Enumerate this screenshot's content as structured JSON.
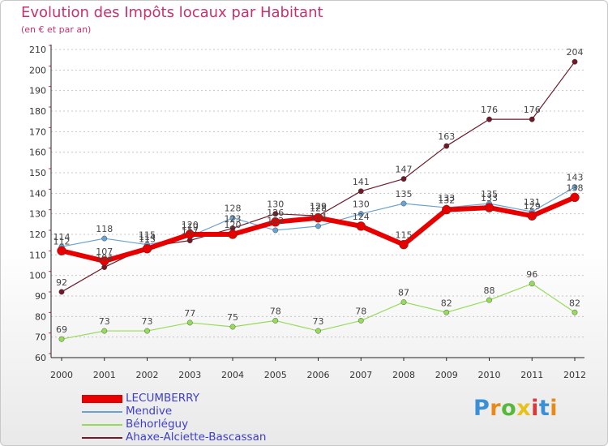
{
  "chart_data": {
    "type": "line",
    "title": "Evolution des Impôts locaux par Habitant",
    "subtitle": "(en € et par an)",
    "xlabel": "",
    "ylabel": "",
    "categories": [
      "2000",
      "2001",
      "2002",
      "2003",
      "2004",
      "2005",
      "2006",
      "2007",
      "2008",
      "2009",
      "2010",
      "2011",
      "2012"
    ],
    "ylim": [
      60,
      210
    ],
    "yticks": [
      60,
      70,
      80,
      90,
      100,
      110,
      120,
      130,
      140,
      150,
      160,
      170,
      180,
      190,
      200,
      210
    ],
    "ytick_labels": [
      "60",
      "70",
      "80",
      "90",
      "100",
      "110",
      "120",
      "130",
      "140",
      "150",
      "160",
      "170",
      "180",
      "190",
      "200",
      "210"
    ],
    "grid": "horizontal dotted",
    "legend_position": "bottom-left",
    "series": [
      {
        "name": "Ahaxe-Alciette-Bascassan",
        "color": "#6e1a28",
        "values": [
          92,
          104,
          114,
          117,
          123,
          130,
          129,
          141,
          147,
          163,
          176,
          176,
          204
        ],
        "labels": [
          "92",
          "104",
          "114",
          "117",
          "123",
          "130",
          "129",
          "141",
          "147",
          "163",
          "176",
          "176",
          "204"
        ]
      },
      {
        "name": "Béhorléguy",
        "color": "#96dc5a",
        "values": [
          69,
          73,
          73,
          77,
          75,
          78,
          73,
          78,
          87,
          82,
          88,
          96,
          82
        ],
        "labels": [
          "69",
          "73",
          "73",
          "77",
          "75",
          "78",
          "73",
          "78",
          "87",
          "82",
          "88",
          "96",
          "82"
        ]
      },
      {
        "name": "Mendive",
        "color": "#6aa2d0",
        "values": [
          114,
          118,
          115,
          119,
          128,
          122,
          124,
          130,
          135,
          133,
          135,
          131,
          143
        ],
        "labels": [
          "114",
          "118",
          "115",
          "119",
          "128",
          "122",
          "124",
          "130",
          "135",
          "133",
          "135",
          "131",
          "143"
        ]
      },
      {
        "name": "LECUMBERRY",
        "color": "#e80000",
        "values": [
          112,
          107,
          113,
          120,
          120,
          126,
          128,
          124,
          115,
          132,
          133,
          129,
          138
        ],
        "labels": [
          "112",
          "107",
          "113",
          "120",
          "120",
          "126",
          "128",
          "124",
          "115",
          "132",
          "133",
          "129",
          "138"
        ]
      }
    ]
  },
  "legend": {
    "items": [
      "LECUMBERRY",
      "Mendive",
      "Béhorléguy",
      "Ahaxe-Alciette-Bascassan"
    ]
  },
  "branding": {
    "logo_text": "Proxiti",
    "letters": [
      "P",
      "r",
      "o",
      "x",
      "i",
      "t",
      "i"
    ],
    "letter_colors": [
      "#3a8fd6",
      "#e88a1a",
      "#58b83a",
      "#e8c21a",
      "#d83a3a",
      "#3a8fd6",
      "#e88a1a"
    ]
  }
}
